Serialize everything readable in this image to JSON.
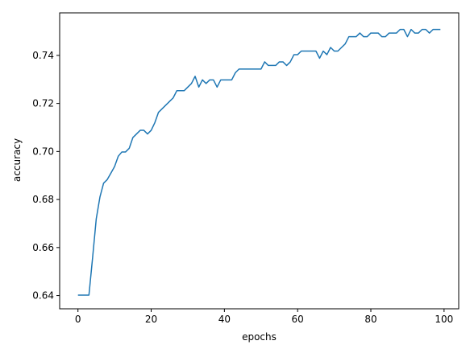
{
  "chart_data": {
    "type": "line",
    "title": "",
    "xlabel": "epochs",
    "ylabel": "accuracy",
    "xlim": [
      -5,
      104
    ],
    "ylim": [
      0.6345,
      0.7577
    ],
    "x_ticks": [
      0,
      20,
      40,
      60,
      80,
      100
    ],
    "x_tick_labels": [
      "0",
      "20",
      "40",
      "60",
      "80",
      "100"
    ],
    "y_ticks": [
      0.64,
      0.66,
      0.68,
      0.7,
      0.72,
      0.74
    ],
    "y_tick_labels": [
      "0.64",
      "0.66",
      "0.68",
      "0.70",
      "0.72",
      "0.74"
    ],
    "grid": false,
    "legend": false,
    "line_color": "#1f77b4",
    "series": [
      {
        "x": [
          0,
          1,
          2,
          3,
          4,
          5,
          6,
          7,
          8,
          9,
          10,
          11,
          12,
          13,
          14,
          15,
          16,
          17,
          18,
          19,
          20,
          21,
          22,
          23,
          24,
          25,
          26,
          27,
          28,
          29,
          30,
          31,
          32,
          33,
          34,
          35,
          36,
          37,
          38,
          39,
          40,
          41,
          42,
          43,
          44,
          45,
          46,
          47,
          48,
          49,
          50,
          51,
          52,
          53,
          54,
          55,
          56,
          57,
          58,
          59,
          60,
          61,
          62,
          63,
          64,
          65,
          66,
          67,
          68,
          69,
          70,
          71,
          72,
          73,
          74,
          75,
          76,
          77,
          78,
          79,
          80,
          81,
          82,
          83,
          84,
          85,
          86,
          87,
          88,
          89,
          90,
          91,
          92,
          93,
          94,
          95,
          96,
          97,
          98,
          99
        ],
        "values": [
          0.6402,
          0.6402,
          0.6402,
          0.6402,
          0.6558,
          0.672,
          0.681,
          0.6868,
          0.6883,
          0.691,
          0.6937,
          0.698,
          0.6998,
          0.6998,
          0.7013,
          0.7058,
          0.7073,
          0.7088,
          0.7088,
          0.7073,
          0.7088,
          0.712,
          0.7163,
          0.7178,
          0.7193,
          0.7208,
          0.7223,
          0.7253,
          0.7253,
          0.7253,
          0.7268,
          0.7283,
          0.7313,
          0.7268,
          0.7298,
          0.7283,
          0.7298,
          0.7298,
          0.7268,
          0.7298,
          0.7298,
          0.7298,
          0.7298,
          0.7328,
          0.7343,
          0.7343,
          0.7343,
          0.7343,
          0.7343,
          0.7343,
          0.7343,
          0.7373,
          0.7358,
          0.7358,
          0.7358,
          0.7373,
          0.7373,
          0.7358,
          0.7373,
          0.7403,
          0.7403,
          0.7418,
          0.7418,
          0.7418,
          0.7418,
          0.7418,
          0.7388,
          0.7418,
          0.7403,
          0.7433,
          0.7418,
          0.7418,
          0.7433,
          0.7448,
          0.7478,
          0.7478,
          0.7478,
          0.7493,
          0.7478,
          0.7478,
          0.7493,
          0.7493,
          0.7493,
          0.7478,
          0.7478,
          0.7493,
          0.7493,
          0.7493,
          0.7508,
          0.7508,
          0.7478,
          0.7508,
          0.7493,
          0.7493,
          0.7508,
          0.7508,
          0.7493,
          0.7508,
          0.7508,
          0.7508
        ]
      }
    ]
  }
}
